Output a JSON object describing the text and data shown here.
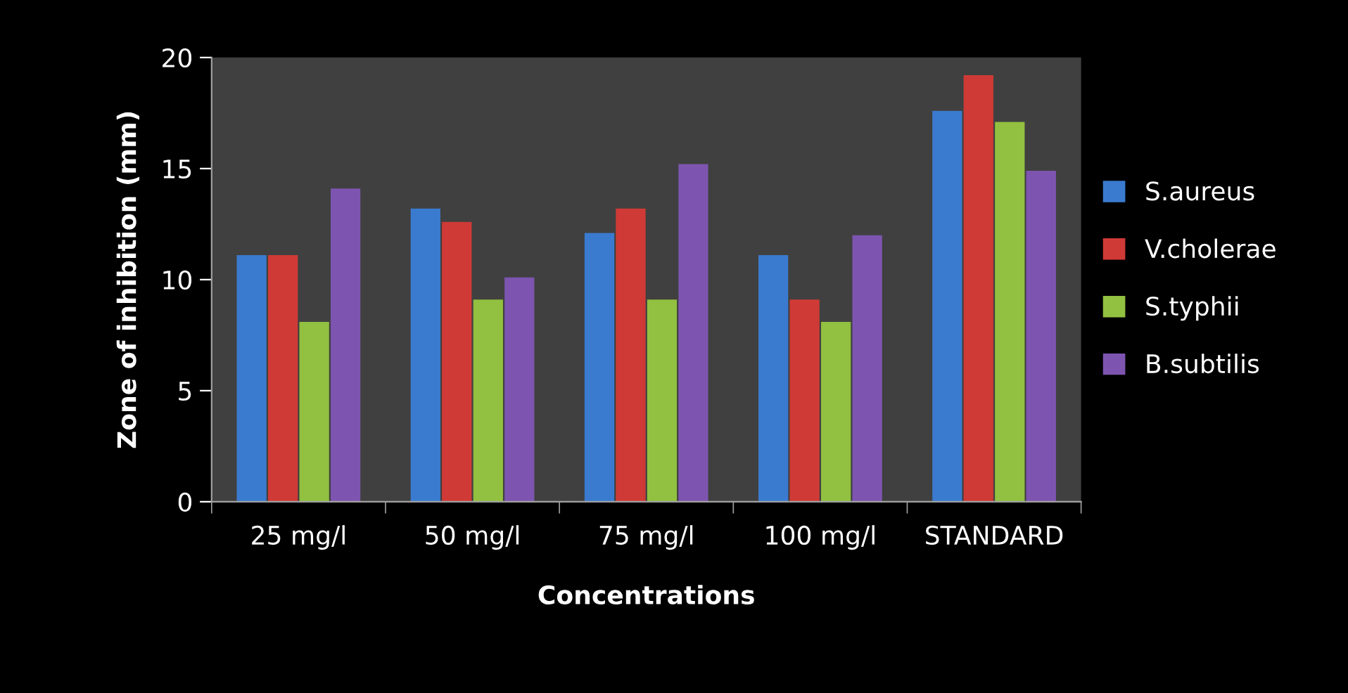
{
  "chart_data": {
    "type": "bar",
    "xlabel": "Concentrations",
    "ylabel": "Zone of inhibition (mm)",
    "categories": [
      "25 mg/l",
      "50 mg/l",
      "75 mg/l",
      "100 mg/l",
      "STANDARD"
    ],
    "series": [
      {
        "name": "S.aureus",
        "color": "#3a7bd0",
        "values": [
          11.1,
          13.2,
          12.1,
          11.1,
          17.6
        ]
      },
      {
        "name": "V.cholerae",
        "color": "#d03a36",
        "values": [
          11.1,
          12.6,
          13.2,
          9.1,
          19.2
        ]
      },
      {
        "name": "S.typhii",
        "color": "#92c040",
        "values": [
          8.1,
          9.1,
          9.1,
          8.1,
          17.1
        ]
      },
      {
        "name": "B.subtilis",
        "color": "#7d55b0",
        "values": [
          14.1,
          10.1,
          15.2,
          12.0,
          14.9
        ]
      }
    ],
    "ylim": [
      0,
      20
    ],
    "yticks": [
      0,
      5,
      10,
      15,
      20
    ],
    "legend": "right",
    "grid": false
  }
}
